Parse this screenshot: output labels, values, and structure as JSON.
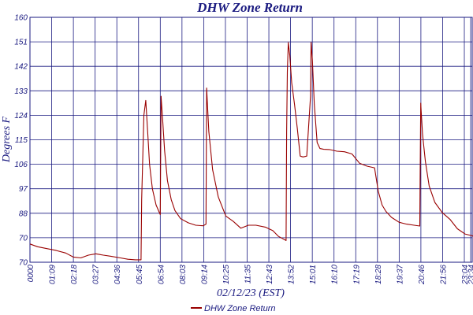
{
  "chart_data": {
    "type": "line",
    "title": "DHW Zone Return",
    "xlabel": "02/12/23 (EST)",
    "ylabel": "Degrees F",
    "ylim": [
      70,
      160
    ],
    "y_ticks": [
      "160",
      "151",
      "142",
      "133",
      "124",
      "115",
      "106",
      "97",
      "88",
      "70",
      "70"
    ],
    "x_ticks": [
      "0000",
      "01:09",
      "02:18",
      "03:27",
      "04:36",
      "05:45",
      "06:54",
      "08:03",
      "09:14",
      "10:25",
      "11:35",
      "12:43",
      "13:52",
      "15:01",
      "16:10",
      "17:19",
      "18:28",
      "19:37",
      "20:46",
      "21:56",
      "23:04",
      "23:34"
    ],
    "grid": true,
    "legend_position": "bottom-center",
    "series": [
      {
        "name": "DHW Zone Return",
        "color": "#990000",
        "x_hours": [
          0,
          0.4,
          0.9,
          1.4,
          1.9,
          2.3,
          2.7,
          3.1,
          3.5,
          3.9,
          4.3,
          4.8,
          5.2,
          5.6,
          5.9,
          5.93,
          6.05,
          6.15,
          6.25,
          6.35,
          6.5,
          6.7,
          6.92,
          6.96,
          7.05,
          7.15,
          7.3,
          7.5,
          7.7,
          8.0,
          8.4,
          8.8,
          9.2,
          9.35,
          9.38,
          9.5,
          9.7,
          10.0,
          10.4,
          10.8,
          11.2,
          11.6,
          12.0,
          12.5,
          12.9,
          13.2,
          13.6,
          13.63,
          13.67,
          13.72,
          13.8,
          13.9,
          14.05,
          14.2,
          14.35,
          14.5,
          14.7,
          14.9,
          14.93,
          15.0,
          15.1,
          15.25,
          15.4,
          15.6,
          15.9,
          16.3,
          16.7,
          17.1,
          17.5,
          17.9,
          18.3,
          18.5,
          18.7,
          18.9,
          19.2,
          19.6,
          20.0,
          20.4,
          20.7,
          20.72,
          20.75,
          20.77,
          20.85,
          21.0,
          21.2,
          21.5,
          21.9,
          22.3,
          22.7,
          23.1,
          23.5,
          23.8
        ],
        "values": [
          76.7,
          75.7,
          75.0,
          74.3,
          73.4,
          71.9,
          71.6,
          72.6,
          73.1,
          72.6,
          72.2,
          71.6,
          71.1,
          70.9,
          70.9,
          93,
          124,
          129.5,
          118,
          106,
          97,
          91,
          87.5,
          131,
          122,
          111,
          100,
          93,
          89,
          86,
          84.5,
          83.6,
          83.4,
          84,
          134,
          118,
          104,
          94,
          87,
          85,
          82.5,
          83.6,
          83.6,
          82.9,
          81.6,
          79.5,
          78,
          118,
          140,
          150.7,
          146,
          136,
          128,
          119,
          109,
          108.7,
          109,
          131,
          150.8,
          144,
          128,
          114,
          111.8,
          111.5,
          111.4,
          110.8,
          110.6,
          109.8,
          106.4,
          105.3,
          104.7,
          96,
          91,
          88.7,
          86.5,
          84.7,
          84.0,
          83.6,
          83.3,
          99.5,
          128.5,
          126.3,
          117,
          107,
          98,
          92,
          88.2,
          85.8,
          82.3,
          80.4,
          79.7,
          78.8
        ]
      }
    ]
  }
}
